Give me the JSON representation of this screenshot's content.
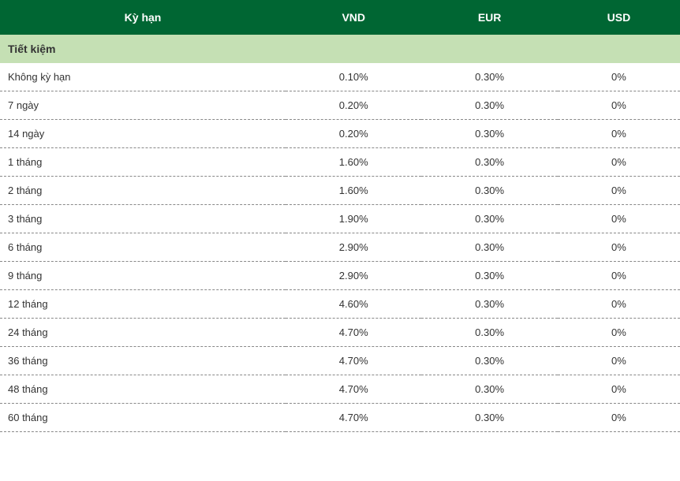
{
  "table": {
    "header_bg_color": "#006633",
    "header_text_color": "#ffffff",
    "section_bg_color": "#c5e0b4",
    "section_text_color": "#333333",
    "row_text_color": "#333333",
    "border_color": "#888888",
    "background_color": "#ffffff",
    "header_fontsize": 14,
    "section_fontsize": 14,
    "cell_fontsize": 13,
    "columns": [
      {
        "label": "Kỳ hạn",
        "width": "42%",
        "align": "center"
      },
      {
        "label": "VND",
        "width": "20%",
        "align": "center"
      },
      {
        "label": "EUR",
        "width": "20%",
        "align": "center"
      },
      {
        "label": "USD",
        "width": "18%",
        "align": "center"
      }
    ],
    "section_title": "Tiết kiệm",
    "rows": [
      {
        "term": "Không kỳ hạn",
        "vnd": "0.10%",
        "eur": "0.30%",
        "usd": "0%"
      },
      {
        "term": "7 ngày",
        "vnd": "0.20%",
        "eur": "0.30%",
        "usd": "0%"
      },
      {
        "term": "14 ngày",
        "vnd": "0.20%",
        "eur": "0.30%",
        "usd": "0%"
      },
      {
        "term": "1 tháng",
        "vnd": "1.60%",
        "eur": "0.30%",
        "usd": "0%"
      },
      {
        "term": "2 tháng",
        "vnd": "1.60%",
        "eur": "0.30%",
        "usd": "0%"
      },
      {
        "term": "3 tháng",
        "vnd": "1.90%",
        "eur": "0.30%",
        "usd": "0%"
      },
      {
        "term": "6 tháng",
        "vnd": "2.90%",
        "eur": "0.30%",
        "usd": "0%"
      },
      {
        "term": "9 tháng",
        "vnd": "2.90%",
        "eur": "0.30%",
        "usd": "0%"
      },
      {
        "term": "12 tháng",
        "vnd": "4.60%",
        "eur": "0.30%",
        "usd": "0%"
      },
      {
        "term": "24 tháng",
        "vnd": "4.70%",
        "eur": "0.30%",
        "usd": "0%"
      },
      {
        "term": "36 tháng",
        "vnd": "4.70%",
        "eur": "0.30%",
        "usd": "0%"
      },
      {
        "term": "48 tháng",
        "vnd": "4.70%",
        "eur": "0.30%",
        "usd": "0%"
      },
      {
        "term": "60 tháng",
        "vnd": "4.70%",
        "eur": "0.30%",
        "usd": "0%"
      }
    ]
  }
}
